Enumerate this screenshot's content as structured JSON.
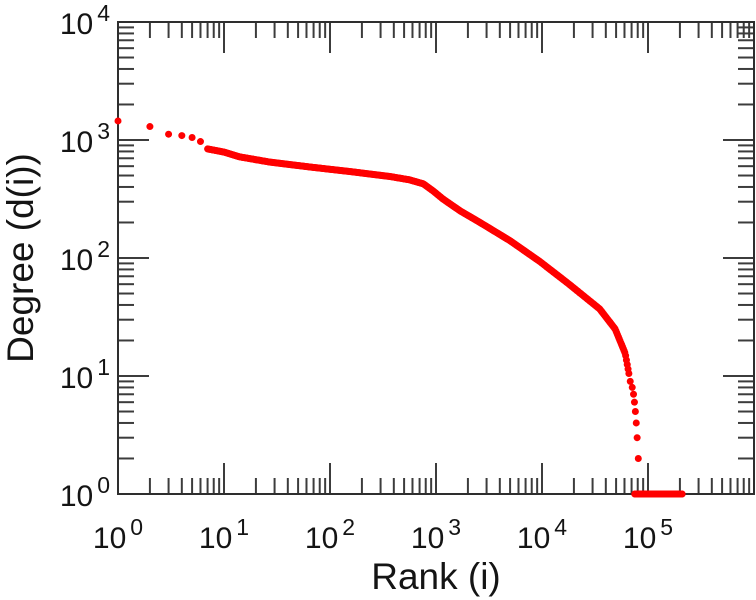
{
  "figure": {
    "background_color": "#ffffff",
    "frame_color": "#2e2e2e",
    "tick_color": "#3c3c3c",
    "text_color": "#141414"
  },
  "chart_data": {
    "type": "scatter",
    "title": "",
    "xlabel": "Rank (i)",
    "ylabel": "Degree (d(i))",
    "x_scale": "log",
    "y_scale": "log",
    "xlim": [
      1,
      1000000
    ],
    "ylim": [
      1,
      10000
    ],
    "grid": false,
    "legend": null,
    "tick_style": {
      "direction": "in",
      "mirror": true,
      "major_len": 31,
      "minor_len": 16
    },
    "tick_label_base": "10",
    "x_tick_exponents": [
      0,
      1,
      2,
      3,
      4,
      5
    ],
    "y_tick_exponents": [
      0,
      1,
      2,
      3,
      4
    ],
    "marker": {
      "shape": "circle",
      "color": "#ff0000",
      "radius": 3.5
    },
    "head_points": [
      [
        1,
        1450
      ],
      [
        2,
        1300
      ],
      [
        3,
        1120
      ],
      [
        4,
        1090
      ],
      [
        5,
        1050
      ],
      [
        6,
        970
      ]
    ],
    "curve_anchors": [
      [
        7,
        840
      ],
      [
        10,
        790
      ],
      [
        14,
        720
      ],
      [
        27,
        650
      ],
      [
        65,
        590
      ],
      [
        155,
        540
      ],
      [
        370,
        490
      ],
      [
        560,
        460
      ],
      [
        760,
        425
      ],
      [
        940,
        370
      ],
      [
        1170,
        315
      ],
      [
        1700,
        250
      ],
      [
        2600,
        200
      ],
      [
        5000,
        140
      ],
      [
        9600,
        93
      ],
      [
        18000,
        60
      ],
      [
        35000,
        37
      ],
      [
        49000,
        25
      ],
      [
        61000,
        15.5
      ],
      [
        66000,
        10.5
      ]
    ],
    "tail_points": [
      [
        68000,
        9
      ],
      [
        71000,
        8
      ],
      [
        73000,
        7
      ],
      [
        74500,
        6
      ],
      [
        76000,
        5
      ],
      [
        77500,
        4
      ],
      [
        79000,
        3
      ],
      [
        81000,
        2
      ]
    ],
    "degree_one_run": {
      "rank_start": 75000,
      "rank_end": 210000,
      "degree": 1
    }
  }
}
